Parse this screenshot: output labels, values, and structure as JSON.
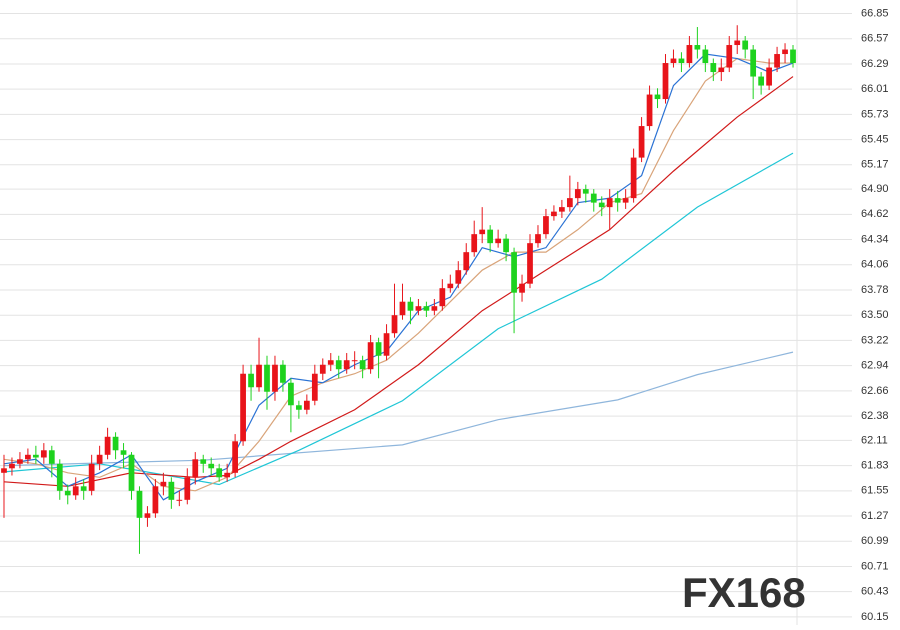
{
  "chart_data": {
    "type": "candlestick",
    "up_color": "#e8141a",
    "down_color": "#1ed21e",
    "grid": true,
    "ylim": [
      60.06,
      67.0
    ],
    "yticks": [
      66.85,
      66.57,
      66.29,
      66.01,
      65.73,
      65.45,
      65.17,
      {
        "value": 64.9,
        "label": "64.90"
      },
      64.62,
      64.34,
      64.06,
      63.78,
      {
        "value": 63.5,
        "label": "63.50"
      },
      63.22,
      62.94,
      62.66,
      62.38,
      62.11,
      61.83,
      61.55,
      61.27,
      60.99,
      60.71,
      60.43,
      60.15
    ],
    "watermark": "FX168",
    "categories": [
      null,
      null,
      null,
      null,
      null,
      null,
      null,
      null,
      null,
      null,
      null,
      null,
      null,
      null,
      null,
      null,
      null,
      null,
      null,
      null,
      null,
      null,
      null,
      null,
      null,
      null,
      null,
      null,
      null,
      null,
      null,
      null,
      null,
      null,
      null,
      null,
      null,
      null,
      null,
      null,
      null,
      null,
      null,
      null,
      null,
      null,
      null,
      null,
      null,
      null,
      null,
      null,
      null,
      null,
      null,
      null,
      null,
      null,
      null,
      null,
      null,
      null,
      null,
      null,
      null,
      null,
      null,
      null,
      null,
      null,
      null,
      null,
      null,
      null,
      null,
      null,
      null,
      null,
      null,
      null,
      null,
      null,
      null,
      null,
      null,
      null,
      null,
      null,
      null,
      null,
      null,
      null,
      null,
      null,
      null,
      null,
      null,
      null,
      null,
      null
    ],
    "open": [
      61.75,
      61.8,
      61.85,
      61.9,
      61.95,
      61.92,
      62.0,
      61.85,
      61.55,
      61.5,
      61.6,
      61.55,
      61.85,
      61.95,
      62.15,
      62.0,
      61.95,
      61.55,
      61.25,
      61.3,
      61.6,
      61.65,
      61.45,
      61.45,
      61.7,
      61.9,
      61.85,
      61.8,
      61.7,
      61.75,
      62.1,
      62.85,
      62.7,
      62.95,
      62.65,
      62.95,
      62.75,
      62.5,
      62.45,
      62.55,
      62.85,
      62.95,
      63.0,
      62.9,
      63.0,
      63.0,
      62.9,
      63.2,
      63.05,
      63.3,
      63.5,
      63.65,
      63.55,
      63.6,
      63.55,
      63.6,
      63.8,
      63.85,
      64.0,
      64.2,
      64.4,
      64.45,
      64.3,
      64.35,
      64.2,
      63.75,
      63.85,
      64.3,
      64.4,
      64.6,
      64.65,
      64.7,
      64.8,
      64.9,
      64.85,
      64.75,
      64.7,
      64.8,
      64.75,
      64.8,
      65.25,
      65.6,
      65.95,
      65.9,
      66.3,
      66.35,
      66.3,
      66.5,
      66.45,
      66.3,
      66.2,
      66.25,
      66.5,
      66.55,
      66.45,
      66.15,
      66.05,
      66.25,
      66.4,
      66.45
    ],
    "high": [
      61.95,
      61.92,
      61.98,
      62.02,
      62.05,
      62.08,
      62.05,
      61.9,
      61.62,
      61.7,
      61.68,
      61.95,
      62.05,
      62.25,
      62.2,
      62.08,
      61.98,
      61.6,
      61.38,
      61.68,
      61.75,
      61.7,
      61.55,
      61.8,
      61.98,
      61.95,
      61.92,
      61.85,
      61.85,
      62.18,
      62.95,
      62.95,
      63.25,
      63.05,
      63.05,
      63.0,
      62.8,
      62.55,
      62.62,
      62.95,
      63.02,
      63.08,
      63.05,
      63.08,
      63.1,
      63.05,
      63.28,
      63.25,
      63.4,
      63.85,
      63.85,
      63.7,
      63.68,
      63.65,
      63.68,
      63.9,
      63.95,
      64.1,
      64.3,
      64.55,
      64.7,
      64.5,
      64.45,
      64.4,
      64.25,
      63.95,
      64.4,
      64.5,
      64.68,
      64.72,
      64.78,
      65.05,
      64.98,
      64.95,
      64.9,
      64.82,
      64.9,
      64.88,
      64.9,
      65.35,
      65.7,
      66.05,
      66.02,
      66.4,
      66.45,
      66.42,
      66.6,
      66.7,
      66.5,
      66.35,
      66.35,
      66.6,
      66.72,
      66.6,
      66.5,
      66.2,
      66.35,
      66.48,
      66.52,
      66.5
    ],
    "low": [
      61.25,
      61.72,
      61.8,
      61.85,
      61.85,
      61.85,
      61.7,
      61.45,
      61.4,
      61.45,
      61.45,
      61.5,
      61.78,
      61.9,
      61.9,
      61.8,
      61.45,
      60.85,
      61.15,
      61.25,
      61.5,
      61.35,
      61.38,
      61.4,
      61.62,
      61.75,
      61.72,
      61.65,
      61.65,
      61.7,
      62.05,
      62.55,
      62.65,
      62.45,
      62.55,
      62.65,
      62.2,
      62.35,
      62.4,
      62.5,
      62.78,
      62.88,
      62.8,
      62.85,
      62.9,
      62.8,
      62.85,
      62.8,
      63.0,
      63.25,
      63.45,
      63.4,
      63.5,
      63.48,
      63.5,
      63.55,
      63.75,
      63.8,
      63.95,
      64.15,
      64.3,
      64.2,
      64.25,
      64.1,
      63.3,
      63.65,
      63.8,
      64.25,
      64.35,
      64.55,
      64.58,
      64.65,
      64.72,
      64.75,
      64.65,
      64.6,
      64.45,
      64.65,
      64.68,
      64.75,
      65.2,
      65.55,
      65.8,
      65.85,
      66.25,
      66.2,
      66.25,
      66.35,
      66.2,
      66.1,
      66.1,
      66.2,
      66.4,
      66.35,
      65.9,
      65.95,
      66.0,
      66.2,
      66.3,
      66.25
    ],
    "close": [
      61.8,
      61.85,
      61.9,
      61.95,
      61.92,
      62.0,
      61.85,
      61.55,
      61.5,
      61.6,
      61.55,
      61.85,
      61.95,
      62.15,
      62.0,
      61.95,
      61.55,
      61.25,
      61.3,
      61.6,
      61.65,
      61.45,
      61.45,
      61.7,
      61.9,
      61.85,
      61.8,
      61.7,
      61.75,
      62.1,
      62.85,
      62.7,
      62.95,
      62.65,
      62.95,
      62.75,
      62.5,
      62.45,
      62.55,
      62.85,
      62.95,
      63.0,
      62.9,
      63.0,
      63.0,
      62.9,
      63.2,
      63.05,
      63.3,
      63.5,
      63.65,
      63.55,
      63.6,
      63.55,
      63.6,
      63.8,
      63.85,
      64.0,
      64.2,
      64.4,
      64.45,
      64.3,
      64.35,
      64.2,
      63.75,
      63.85,
      64.3,
      64.4,
      64.6,
      64.65,
      64.7,
      64.8,
      64.9,
      64.85,
      64.75,
      64.7,
      64.8,
      64.75,
      64.8,
      65.25,
      65.6,
      65.95,
      65.9,
      66.3,
      66.35,
      66.3,
      66.5,
      66.45,
      66.3,
      66.2,
      66.25,
      66.5,
      66.55,
      66.45,
      66.15,
      66.05,
      66.25,
      66.4,
      66.45,
      66.3
    ],
    "lines": [
      {
        "color": "#8fb6dc",
        "x": [
          0,
          25,
          50,
          62,
          77,
          87,
          99
        ],
        "values": [
          61.83,
          61.89,
          62.06,
          62.34,
          62.56,
          62.84,
          63.09
        ]
      },
      {
        "color": "#1fc6d6",
        "x": [
          0,
          12,
          27,
          37,
          50,
          62,
          75,
          87,
          99
        ],
        "values": [
          61.76,
          61.85,
          61.62,
          62.0,
          62.55,
          63.35,
          63.9,
          64.7,
          65.3
        ]
      },
      {
        "color": "#d11a1a",
        "x": [
          0,
          8,
          16,
          24,
          28,
          32,
          36,
          44,
          52,
          60,
          68,
          76,
          84,
          92,
          99
        ],
        "values": [
          61.65,
          61.6,
          61.75,
          61.7,
          61.72,
          61.9,
          62.1,
          62.45,
          62.95,
          63.55,
          64.0,
          64.45,
          65.1,
          65.7,
          66.15
        ]
      },
      {
        "color": "#d9a47a",
        "x": [
          0,
          4,
          8,
          12,
          16,
          20,
          24,
          28,
          32,
          36,
          40,
          44,
          48,
          52,
          56,
          60,
          64,
          68,
          72,
          76,
          80,
          84,
          88,
          92,
          96,
          99
        ],
        "values": [
          61.9,
          61.85,
          61.75,
          61.7,
          61.85,
          61.6,
          61.55,
          61.7,
          62.1,
          62.6,
          62.75,
          62.85,
          63.0,
          63.3,
          63.65,
          64.0,
          64.2,
          64.2,
          64.45,
          64.75,
          64.85,
          65.55,
          66.1,
          66.35,
          66.3,
          66.3
        ]
      },
      {
        "color": "#2a72d4",
        "x": [
          0,
          4,
          8,
          12,
          16,
          20,
          24,
          28,
          32,
          36,
          40,
          44,
          48,
          52,
          56,
          60,
          64,
          68,
          72,
          76,
          80,
          84,
          88,
          92,
          96,
          99
        ],
        "values": [
          61.85,
          61.9,
          61.6,
          61.75,
          61.95,
          61.45,
          61.65,
          61.8,
          62.5,
          62.8,
          62.75,
          62.95,
          63.1,
          63.55,
          63.7,
          64.25,
          64.15,
          64.25,
          64.75,
          64.8,
          65.05,
          66.05,
          66.4,
          66.35,
          66.2,
          66.3
        ]
      }
    ]
  }
}
